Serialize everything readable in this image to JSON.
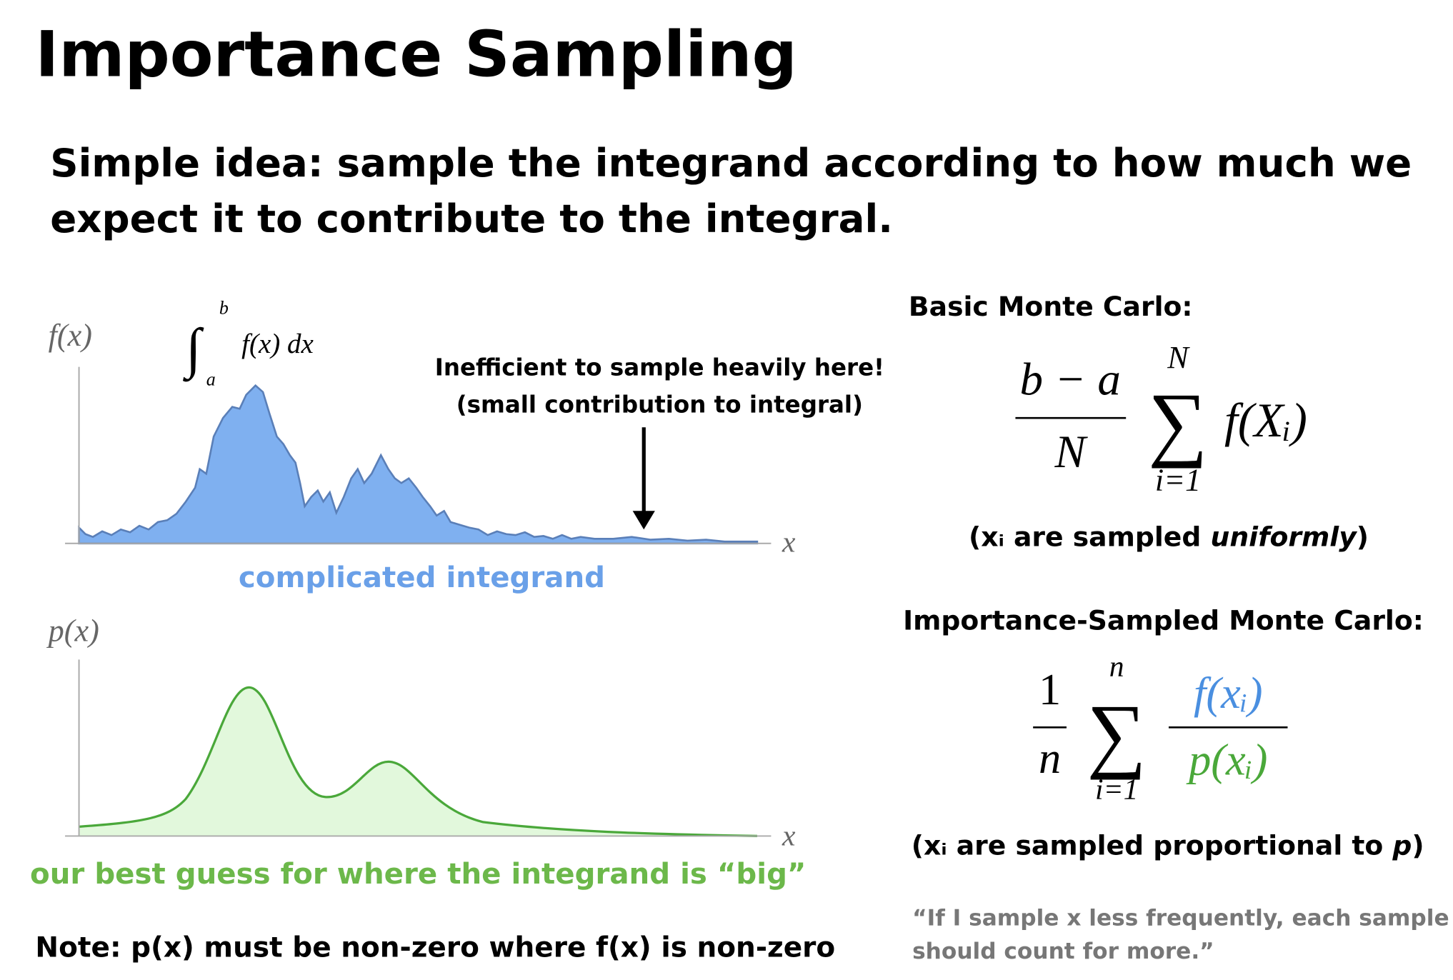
{
  "title": "Importance Sampling",
  "subtitle": [
    "Simple idea: sample the integrand according to how much we",
    "expect it to contribute to the integral."
  ],
  "plot_f": {
    "y_label": "f(x)",
    "x_label": "x",
    "integral": {
      "upper": "b",
      "lower": "a",
      "sign": "∫",
      "integrand": "f(x) dx"
    },
    "annotation": [
      "Inefficient to sample heavily here!",
      "(small contribution to integral)"
    ],
    "caption": "complicated integrand"
  },
  "plot_p": {
    "y_label": "p(x)",
    "x_label": "x",
    "caption": "our best guess for where the integrand is “big”"
  },
  "note": "Note: p(x) must be non-zero where f(x) is non-zero",
  "basic": {
    "heading": "Basic Monte Carlo:",
    "numerator": "b − a",
    "denominator": "N",
    "sum_symbol": "∑",
    "sum_upper": "N",
    "sum_lower": "i=1",
    "summand": "f(Xᵢ)",
    "caption_prefix": "(xᵢ are sampled ",
    "caption_emphasis": "uniformly",
    "caption_suffix": ")"
  },
  "importance": {
    "heading": "Importance-Sampled Monte Carlo:",
    "coef_numerator": "1",
    "coef_denominator": "n",
    "sum_symbol": "∑",
    "sum_upper": "n",
    "sum_lower": "i=1",
    "frac_numerator": "f(xᵢ)",
    "frac_denominator": "p(xᵢ)",
    "caption_prefix": "(xᵢ are sampled proportional to ",
    "caption_emphasis": "p",
    "caption_suffix": ")"
  },
  "quote": [
    "“If I sample x less frequently, each sample",
    "should count for more.”"
  ]
}
